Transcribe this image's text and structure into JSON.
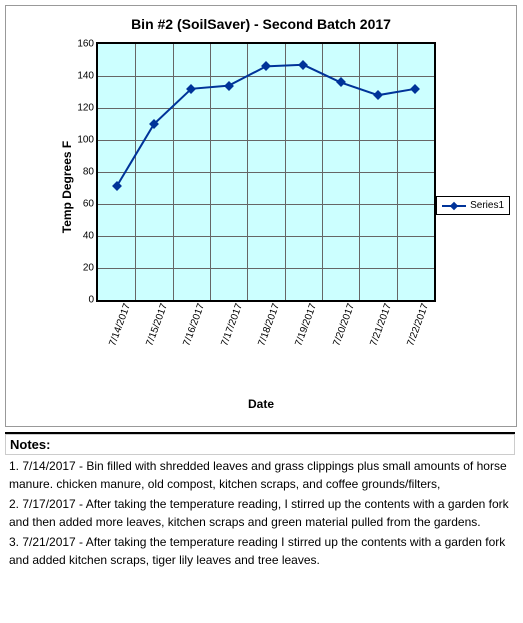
{
  "chart": {
    "title": "Bin #2 (SoilSaver) - Second Batch 2017",
    "ylabel": "Temp Degrees F",
    "xlabel": "Date",
    "ylim": [
      0,
      160
    ],
    "ytick_step": 20,
    "background_color": "#ccffff",
    "grid_color": "#666666",
    "line_color": "#003399",
    "marker_color": "#003399",
    "marker_size": 5,
    "line_width": 2,
    "categories": [
      "7/14/2017",
      "7/15/2017",
      "7/16/2017",
      "7/17/2017",
      "7/18/2017",
      "7/19/2017",
      "7/20/2017",
      "7/21/2017",
      "7/22/2017"
    ],
    "values": [
      71,
      110,
      132,
      134,
      146,
      147,
      136,
      128,
      132
    ],
    "legend_label": "Series1"
  },
  "notes": {
    "header": "Notes:",
    "items": [
      "1. 7/14/2017 - Bin filled with shredded leaves and grass clippings plus small amounts of horse manure. chicken manure, old compost, kitchen scraps, and coffee grounds/filters,",
      "2. 7/17/2017 - After taking the temperature reading, I stirred up the contents with a garden fork and then added more leaves, kitchen scraps and green material pulled from the gardens.",
      "3. 7/21/2017 - After taking the temperature reading I stirred up the contents with a garden fork and added kitchen scraps, tiger lily leaves and tree leaves."
    ]
  }
}
